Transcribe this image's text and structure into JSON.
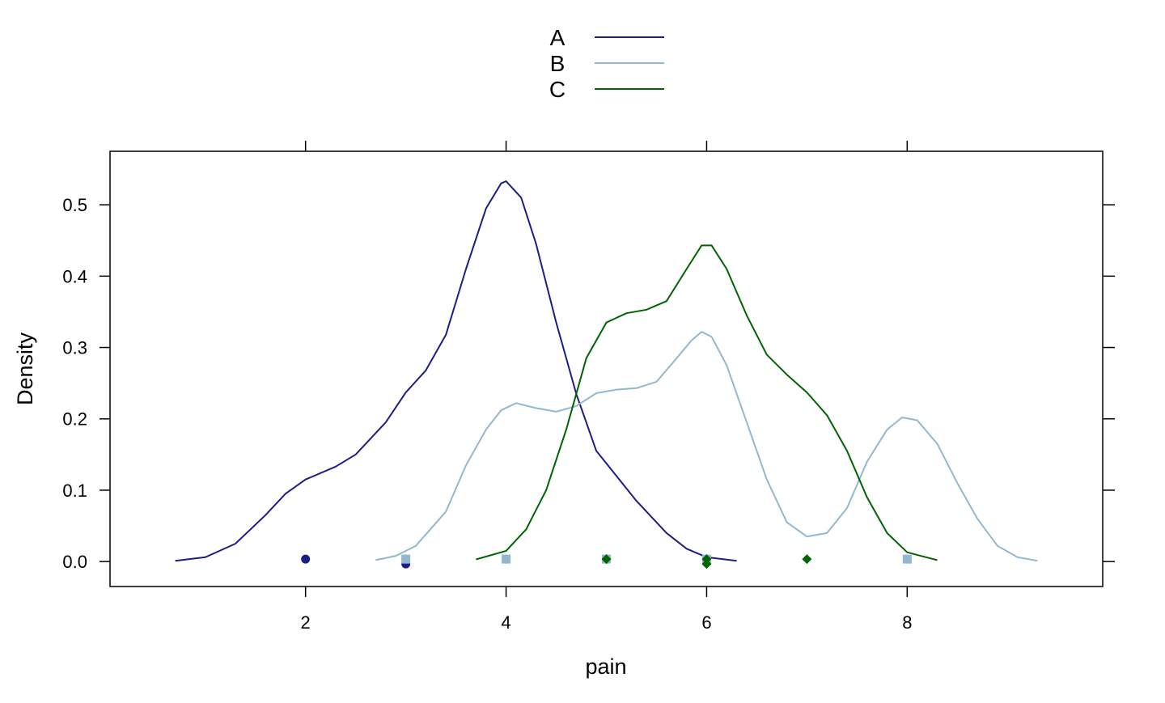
{
  "chart_data": {
    "type": "line",
    "title": "",
    "xlabel": "pain",
    "ylabel": "Density",
    "xlim": [
      0.05,
      9.95
    ],
    "ylim": [
      -0.035,
      0.575
    ],
    "x_ticks": [
      2,
      4,
      6,
      8
    ],
    "x_tick_labels": [
      "2",
      "4",
      "6",
      "8"
    ],
    "y_ticks": [
      0.0,
      0.1,
      0.2,
      0.3,
      0.4,
      0.5
    ],
    "y_tick_labels": [
      "0.0",
      "0.1",
      "0.2",
      "0.3",
      "0.4",
      "0.5"
    ],
    "grid": false,
    "legend_position": "top-center",
    "series": [
      {
        "name": "A",
        "color": "#1d1d8a",
        "points": [
          [
            0.7,
            0.001
          ],
          [
            1.0,
            0.006
          ],
          [
            1.3,
            0.025
          ],
          [
            1.6,
            0.065
          ],
          [
            1.8,
            0.095
          ],
          [
            2.0,
            0.115
          ],
          [
            2.3,
            0.133
          ],
          [
            2.5,
            0.15
          ],
          [
            2.8,
            0.195
          ],
          [
            3.0,
            0.237
          ],
          [
            3.2,
            0.268
          ],
          [
            3.4,
            0.318
          ],
          [
            3.6,
            0.41
          ],
          [
            3.8,
            0.495
          ],
          [
            3.95,
            0.53
          ],
          [
            4.0,
            0.533
          ],
          [
            4.15,
            0.51
          ],
          [
            4.3,
            0.445
          ],
          [
            4.5,
            0.335
          ],
          [
            4.7,
            0.235
          ],
          [
            4.9,
            0.155
          ],
          [
            5.1,
            0.12
          ],
          [
            5.3,
            0.085
          ],
          [
            5.6,
            0.04
          ],
          [
            5.8,
            0.018
          ],
          [
            6.0,
            0.006
          ],
          [
            6.3,
            0.001
          ]
        ],
        "rug": [
          2,
          3,
          3,
          4,
          5,
          6
        ]
      },
      {
        "name": "B",
        "color": "#92b8d0",
        "points": [
          [
            2.7,
            0.002
          ],
          [
            2.9,
            0.008
          ],
          [
            3.1,
            0.022
          ],
          [
            3.4,
            0.07
          ],
          [
            3.6,
            0.135
          ],
          [
            3.8,
            0.185
          ],
          [
            3.95,
            0.212
          ],
          [
            4.1,
            0.222
          ],
          [
            4.3,
            0.215
          ],
          [
            4.5,
            0.21
          ],
          [
            4.7,
            0.218
          ],
          [
            4.9,
            0.236
          ],
          [
            5.1,
            0.241
          ],
          [
            5.3,
            0.243
          ],
          [
            5.5,
            0.252
          ],
          [
            5.7,
            0.285
          ],
          [
            5.85,
            0.31
          ],
          [
            5.95,
            0.322
          ],
          [
            6.05,
            0.315
          ],
          [
            6.2,
            0.275
          ],
          [
            6.4,
            0.195
          ],
          [
            6.6,
            0.115
          ],
          [
            6.8,
            0.055
          ],
          [
            7.0,
            0.035
          ],
          [
            7.2,
            0.04
          ],
          [
            7.4,
            0.075
          ],
          [
            7.6,
            0.14
          ],
          [
            7.8,
            0.185
          ],
          [
            7.95,
            0.202
          ],
          [
            8.1,
            0.198
          ],
          [
            8.3,
            0.165
          ],
          [
            8.5,
            0.11
          ],
          [
            8.7,
            0.06
          ],
          [
            8.9,
            0.022
          ],
          [
            9.1,
            0.006
          ],
          [
            9.3,
            0.001
          ]
        ],
        "rug": [
          3,
          4,
          5,
          6,
          8
        ]
      },
      {
        "name": "C",
        "color": "#006400",
        "points": [
          [
            3.7,
            0.003
          ],
          [
            4.0,
            0.015
          ],
          [
            4.2,
            0.045
          ],
          [
            4.4,
            0.1
          ],
          [
            4.6,
            0.185
          ],
          [
            4.8,
            0.285
          ],
          [
            5.0,
            0.335
          ],
          [
            5.2,
            0.348
          ],
          [
            5.4,
            0.353
          ],
          [
            5.6,
            0.365
          ],
          [
            5.8,
            0.41
          ],
          [
            5.95,
            0.443
          ],
          [
            6.05,
            0.443
          ],
          [
            6.2,
            0.41
          ],
          [
            6.4,
            0.345
          ],
          [
            6.6,
            0.29
          ],
          [
            6.8,
            0.262
          ],
          [
            7.0,
            0.237
          ],
          [
            7.2,
            0.205
          ],
          [
            7.4,
            0.155
          ],
          [
            7.6,
            0.09
          ],
          [
            7.8,
            0.04
          ],
          [
            8.0,
            0.013
          ],
          [
            8.3,
            0.002
          ]
        ],
        "rug": [
          5,
          6,
          6,
          7
        ]
      }
    ]
  }
}
